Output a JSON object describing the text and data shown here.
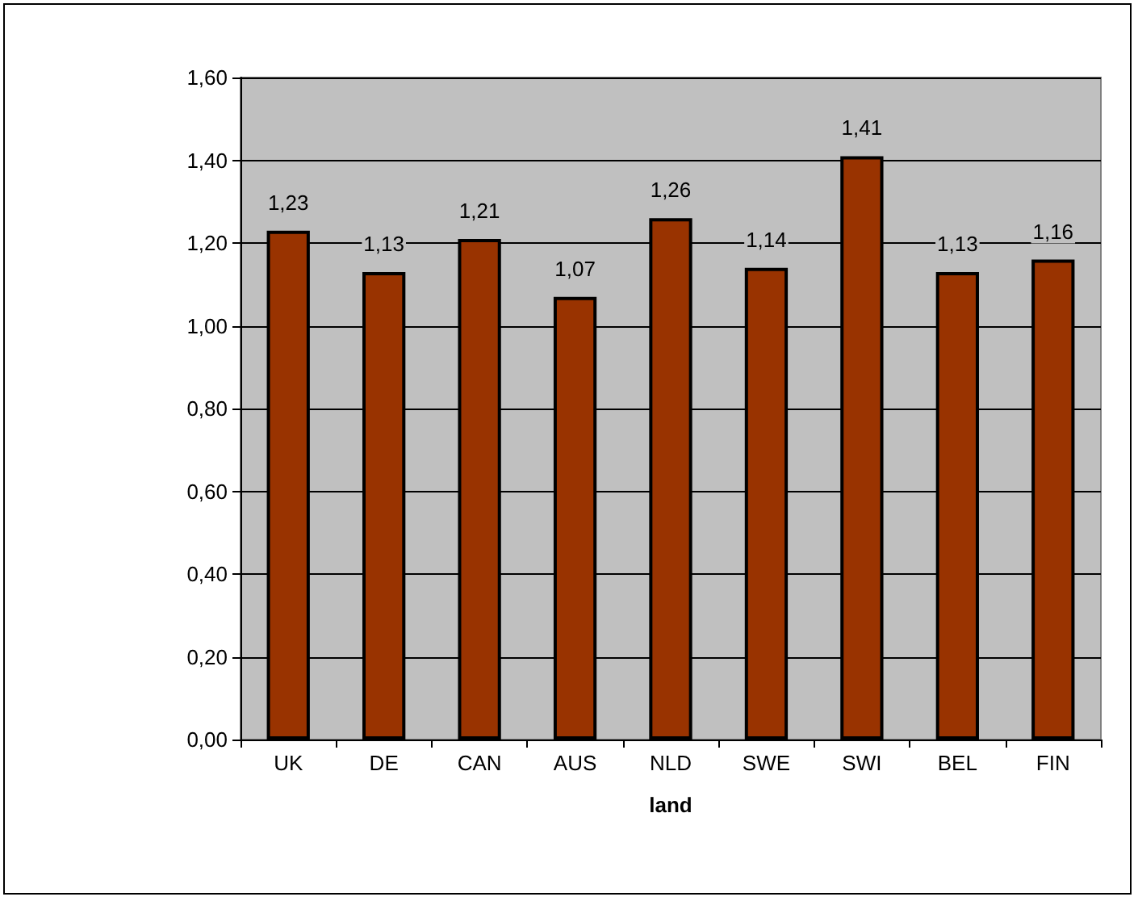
{
  "chart_data": {
    "type": "bar",
    "xlabel": "land",
    "categories": [
      "UK",
      "DE",
      "CAN",
      "AUS",
      "NLD",
      "SWE",
      "SWI",
      "BEL",
      "FIN"
    ],
    "values": [
      1.23,
      1.13,
      1.21,
      1.07,
      1.26,
      1.14,
      1.41,
      1.13,
      1.16
    ],
    "value_labels": [
      "1,23",
      "1,13",
      "1,21",
      "1,07",
      "1,26",
      "1,14",
      "1,41",
      "1,13",
      "1,16"
    ],
    "color": "#993300",
    "ylim": [
      0,
      1.6
    ],
    "yticks": [
      {
        "value": 0,
        "label": "0,00"
      },
      {
        "value": 0.2,
        "label": "0,20"
      },
      {
        "value": 0.4,
        "label": "0,40"
      },
      {
        "value": 0.6,
        "label": "0,60"
      },
      {
        "value": 0.8,
        "label": "0,80"
      },
      {
        "value": 1.0,
        "label": "1,00"
      },
      {
        "value": 1.2,
        "label": "1,20"
      },
      {
        "value": 1.4,
        "label": "1,40"
      },
      {
        "value": 1.6,
        "label": "1,60"
      }
    ],
    "grid": "y"
  }
}
